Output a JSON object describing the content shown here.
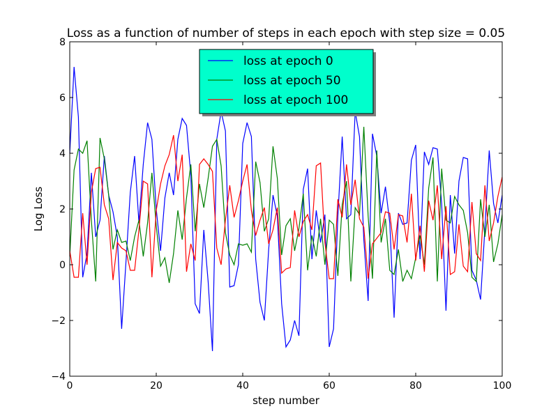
{
  "chart_data": {
    "type": "line",
    "title": "Loss as a function of number of steps in each epoch with step size = 0.05",
    "xlabel": "step number",
    "ylabel": "Log Loss",
    "xlim": [
      0,
      100
    ],
    "ylim": [
      -4,
      8
    ],
    "xticks": [
      0,
      20,
      40,
      60,
      80,
      100
    ],
    "yticks": [
      -4,
      -2,
      0,
      2,
      4,
      6,
      8
    ],
    "grid": false,
    "legend_position": "upper center",
    "series": [
      {
        "name": "loss at epoch 0",
        "color": "#0000ff",
        "values": [
          4.0,
          7.1,
          5.3,
          -0.45,
          0.4,
          3.3,
          1.0,
          1.6,
          3.9,
          2.5,
          1.9,
          1.0,
          -2.3,
          0.1,
          2.6,
          3.9,
          1.5,
          3.6,
          5.1,
          4.5,
          2.0,
          0.5,
          2.4,
          3.3,
          2.5,
          4.5,
          5.25,
          5.0,
          3.2,
          -1.4,
          -1.75,
          1.25,
          -0.6,
          -3.1,
          4.5,
          5.5,
          4.8,
          -0.8,
          -0.75,
          0.0,
          4.35,
          5.1,
          4.6,
          0.2,
          -1.35,
          -2.0,
          0.55,
          2.5,
          1.75,
          -1.4,
          -2.95,
          -2.7,
          -2.0,
          -2.55,
          2.7,
          3.45,
          0.2,
          1.95,
          0.8,
          1.8,
          -2.95,
          -2.3,
          1.75,
          4.6,
          1.65,
          1.8,
          5.5,
          4.6,
          0.9,
          -1.3,
          4.7,
          3.9,
          1.85,
          2.8,
          1.5,
          -1.9,
          1.85,
          1.45,
          1.5,
          3.75,
          4.3,
          0.2,
          4.05,
          3.6,
          4.2,
          4.15,
          2.2,
          -1.65,
          2.5,
          0.4,
          3.0,
          3.85,
          3.8,
          -0.2,
          -0.55,
          -1.25,
          1.3,
          4.1,
          2.2,
          1.5,
          2.5
        ]
      },
      {
        "name": "loss at epoch 50",
        "color": "#008000",
        "values": [
          0.3,
          3.4,
          4.15,
          4.0,
          4.45,
          1.6,
          -0.6,
          4.55,
          3.8,
          2.5,
          0.55,
          1.25,
          0.8,
          0.85,
          0.15,
          1.0,
          1.6,
          0.3,
          1.5,
          3.3,
          1.4,
          -0.05,
          0.25,
          -0.65,
          0.4,
          1.95,
          0.9,
          2.4,
          3.6,
          1.2,
          2.9,
          2.05,
          3.1,
          4.25,
          4.5,
          3.55,
          1.15,
          0.35,
          0.0,
          0.75,
          0.7,
          0.75,
          0.45,
          3.7,
          2.95,
          1.2,
          1.65,
          4.25,
          3.1,
          0.35,
          1.4,
          1.65,
          0.5,
          1.3,
          2.55,
          -0.2,
          1.05,
          0.3,
          1.65,
          0.0,
          1.6,
          1.45,
          -0.4,
          2.15,
          3.0,
          -0.6,
          2.05,
          1.8,
          4.95,
          1.75,
          -0.5,
          4.1,
          0.8,
          1.65,
          -0.2,
          -0.35,
          0.55,
          -0.6,
          -0.2,
          -0.5,
          0.25,
          1.05,
          0.0,
          2.75,
          3.85,
          -0.6,
          3.45,
          1.6,
          1.5,
          2.45,
          2.15,
          1.95,
          1.15,
          -0.45,
          -0.6,
          2.35,
          1.0,
          2.15,
          0.1,
          0.75,
          1.8
        ]
      },
      {
        "name": "loss at epoch 100",
        "color": "#ff0000",
        "values": [
          0.5,
          -0.45,
          -0.45,
          1.85,
          0.0,
          2.6,
          3.45,
          3.5,
          2.15,
          1.65,
          -0.55,
          0.8,
          0.6,
          0.5,
          -0.2,
          -0.2,
          1.25,
          3.0,
          2.9,
          -0.45,
          1.95,
          2.9,
          3.55,
          3.95,
          4.65,
          3.0,
          3.95,
          -0.25,
          0.75,
          0.15,
          3.6,
          3.8,
          3.6,
          3.35,
          0.6,
          0.0,
          1.6,
          2.85,
          1.7,
          2.3,
          3.0,
          3.6,
          1.95,
          1.05,
          1.6,
          2.05,
          0.75,
          1.25,
          2.05,
          -0.3,
          -0.15,
          -0.1,
          1.95,
          1.0,
          1.55,
          1.8,
          1.25,
          3.55,
          3.65,
          0.8,
          -0.5,
          -0.5,
          2.35,
          1.7,
          3.6,
          2.15,
          3.05,
          1.65,
          1.35,
          -0.5,
          0.75,
          0.95,
          1.15,
          1.9,
          1.85,
          0.55,
          1.8,
          1.75,
          0.8,
          2.55,
          0.15,
          1.4,
          -0.25,
          2.3,
          1.6,
          2.85,
          0.2,
          2.1,
          -0.35,
          -0.25,
          1.45,
          -0.05,
          -0.25,
          2.25,
          0.4,
          0.15,
          2.85,
          0.85,
          1.5,
          2.45,
          3.15
        ]
      }
    ]
  }
}
